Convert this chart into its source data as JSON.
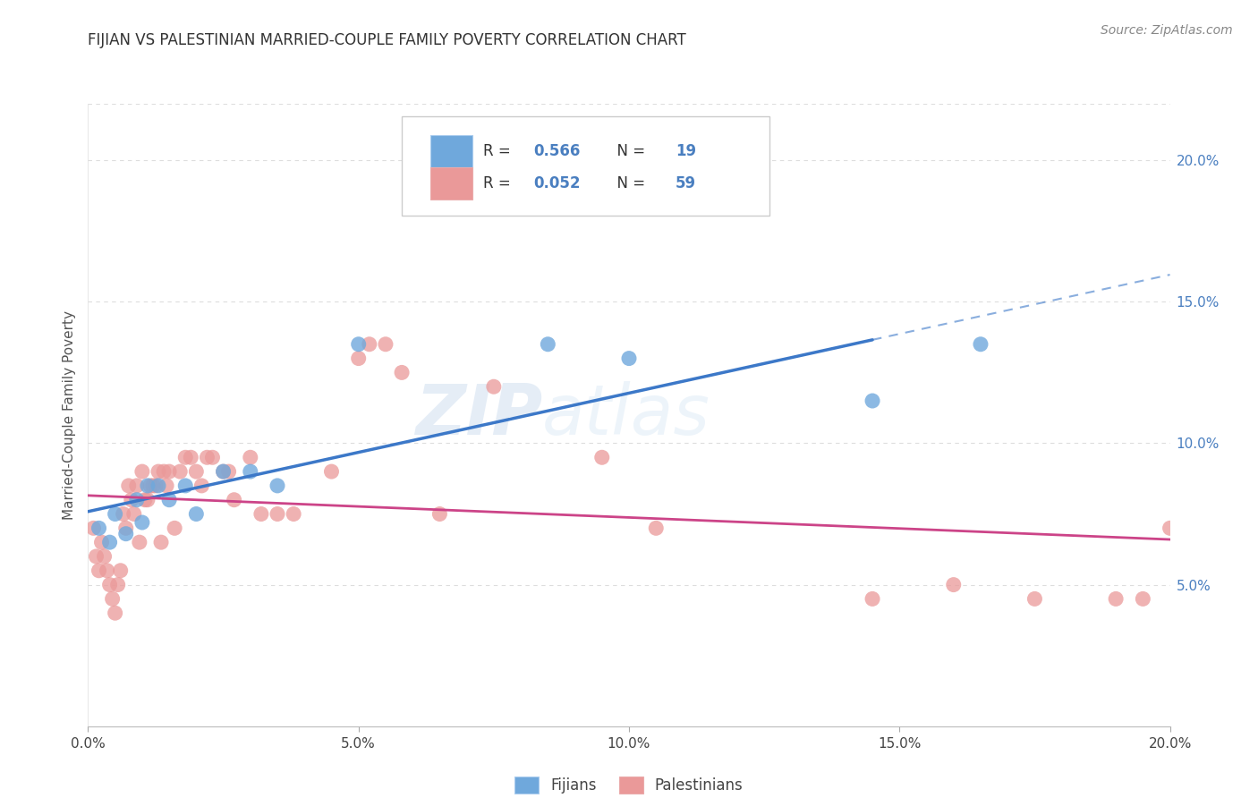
{
  "title": "FIJIAN VS PALESTINIAN MARRIED-COUPLE FAMILY POVERTY CORRELATION CHART",
  "source": "Source: ZipAtlas.com",
  "ylabel": "Married-Couple Family Poverty",
  "xlim": [
    0.0,
    20.0
  ],
  "ylim": [
    0.0,
    22.0
  ],
  "y_ticks": [
    5.0,
    10.0,
    15.0,
    20.0
  ],
  "x_ticks": [
    0.0,
    5.0,
    10.0,
    15.0,
    20.0
  ],
  "fijian_color": "#6fa8dc",
  "palestinian_color": "#ea9999",
  "fijian_line_color": "#3c78c8",
  "palestinian_line_color": "#cc4488",
  "legend_fijian_r": "0.566",
  "legend_fijian_n": "19",
  "legend_palestinian_r": "0.052",
  "legend_palestinian_n": "59",
  "legend_label_fijian": "Fijians",
  "legend_label_palestinian": "Palestinians",
  "watermark_zip": "ZIP",
  "watermark_atlas": "atlas",
  "fijian_x": [
    0.2,
    0.4,
    0.5,
    0.7,
    0.9,
    1.0,
    1.1,
    1.3,
    1.5,
    1.8,
    2.0,
    2.5,
    3.0,
    3.5,
    5.0,
    8.5,
    10.0,
    14.5,
    16.5
  ],
  "fijian_y": [
    7.0,
    6.5,
    7.5,
    6.8,
    8.0,
    7.2,
    8.5,
    8.5,
    8.0,
    8.5,
    7.5,
    9.0,
    9.0,
    8.5,
    13.5,
    13.5,
    13.0,
    11.5,
    13.5
  ],
  "palestinian_x": [
    0.1,
    0.15,
    0.2,
    0.25,
    0.3,
    0.35,
    0.4,
    0.45,
    0.5,
    0.55,
    0.6,
    0.65,
    0.7,
    0.75,
    0.8,
    0.85,
    0.9,
    0.95,
    1.0,
    1.05,
    1.1,
    1.15,
    1.2,
    1.25,
    1.3,
    1.35,
    1.4,
    1.45,
    1.5,
    1.6,
    1.7,
    1.8,
    1.9,
    2.0,
    2.1,
    2.2,
    2.3,
    2.5,
    2.6,
    2.7,
    3.0,
    3.2,
    3.5,
    3.8,
    4.5,
    5.0,
    5.2,
    5.5,
    5.8,
    6.5,
    7.5,
    9.5,
    10.5,
    14.5,
    16.0,
    17.5,
    19.0,
    19.5,
    20.0
  ],
  "palestinian_y": [
    7.0,
    6.0,
    5.5,
    6.5,
    6.0,
    5.5,
    5.0,
    4.5,
    4.0,
    5.0,
    5.5,
    7.5,
    7.0,
    8.5,
    8.0,
    7.5,
    8.5,
    6.5,
    9.0,
    8.0,
    8.0,
    8.5,
    8.5,
    8.5,
    9.0,
    6.5,
    9.0,
    8.5,
    9.0,
    7.0,
    9.0,
    9.5,
    9.5,
    9.0,
    8.5,
    9.5,
    9.5,
    9.0,
    9.0,
    8.0,
    9.5,
    7.5,
    7.5,
    7.5,
    9.0,
    13.0,
    13.5,
    13.5,
    12.5,
    7.5,
    12.0,
    9.5,
    7.0,
    4.5,
    5.0,
    4.5,
    4.5,
    4.5,
    7.0
  ]
}
